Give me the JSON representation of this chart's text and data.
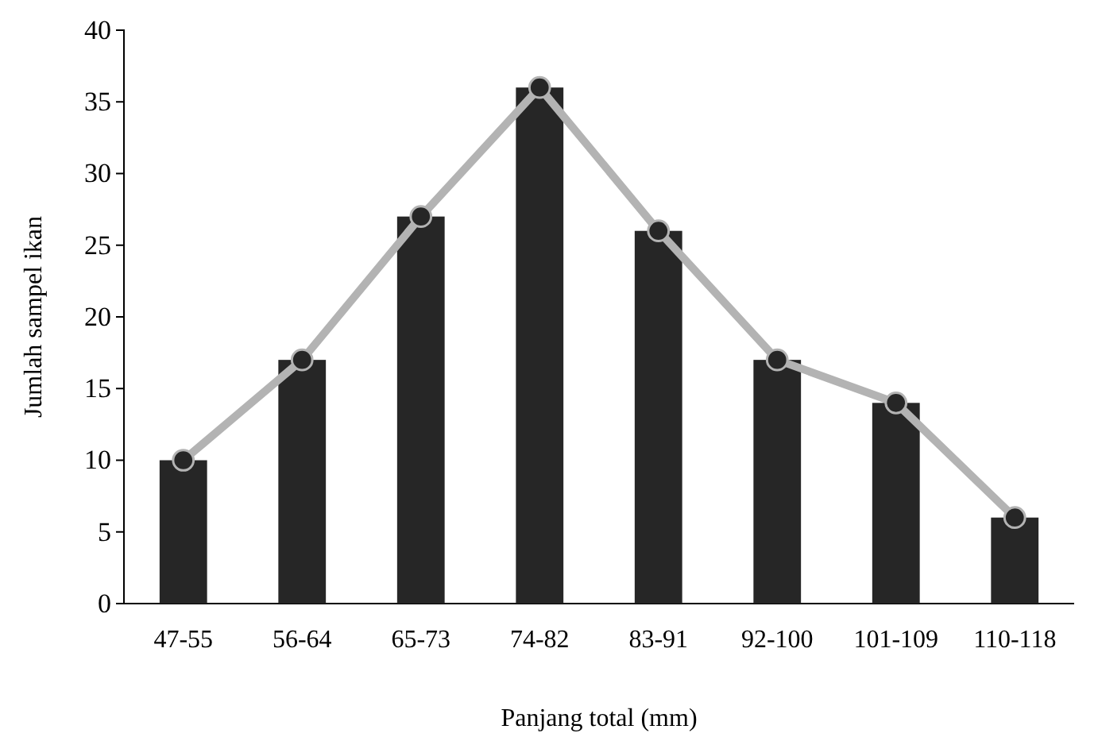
{
  "chart_data": {
    "type": "bar",
    "xlabel": "Panjang total (mm)",
    "ylabel": "Jumlah sampel ikan",
    "categories": [
      "47-55",
      "56-64",
      "65-73",
      "74-82",
      "83-91",
      "92-100",
      "101-109",
      "110-118"
    ],
    "series": [
      {
        "color": "#262626",
        "values": [
          10,
          17,
          27,
          36,
          26,
          17,
          14,
          6
        ]
      },
      {
        "type": "line",
        "color": "#b3b3b3",
        "values": [
          10,
          17,
          27,
          36,
          26,
          17,
          14,
          6
        ]
      }
    ],
    "marker": "circle",
    "line_style": "solid",
    "ylim": [
      0,
      40
    ],
    "yticks": [
      0,
      5,
      10,
      15,
      20,
      25,
      30,
      35,
      40
    ],
    "grid": false
  }
}
